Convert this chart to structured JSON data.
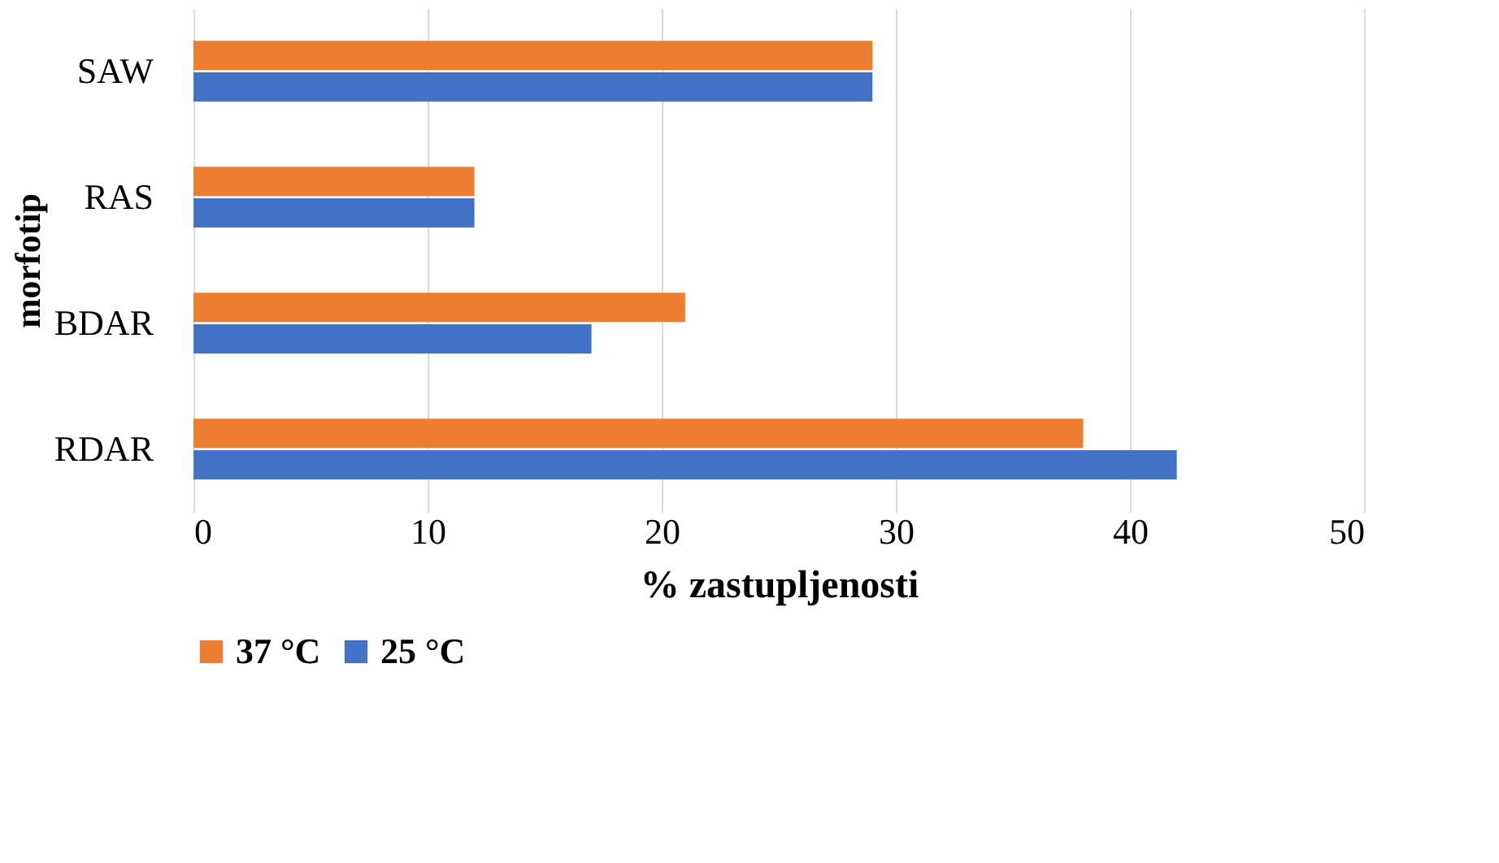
{
  "chart_data": {
    "type": "bar",
    "orientation": "horizontal",
    "xlabel": "% zastupljenosti",
    "ylabel": "morfotip",
    "categories": [
      "SAW",
      "RAS",
      "BDAR",
      "RDAR"
    ],
    "series": [
      {
        "name": "37 °C",
        "color": "#ed7d31",
        "values": [
          29,
          12,
          21,
          38
        ]
      },
      {
        "name": "25 °C",
        "color": "#4472c4",
        "values": [
          29,
          12,
          17,
          42
        ]
      }
    ],
    "xlim": [
      0,
      50
    ],
    "xticks": [
      0,
      10,
      20,
      30,
      40,
      50
    ],
    "grid": "x",
    "legend": "bottom"
  }
}
